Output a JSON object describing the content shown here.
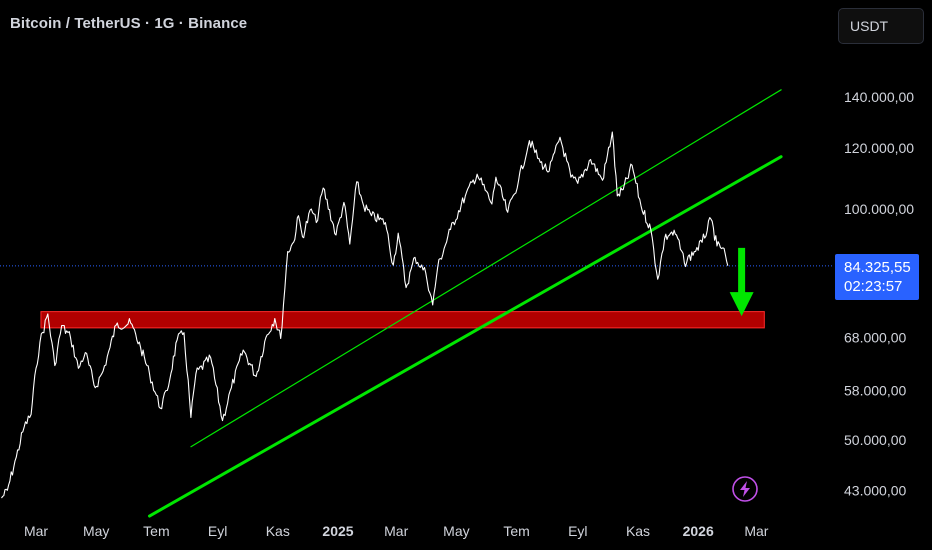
{
  "header": {
    "title": "Bitcoin / TetherUS · 1G · Binance",
    "currency_label": "USDT"
  },
  "price_badge": {
    "price": "84.325,55",
    "countdown": "02:23:57"
  },
  "colors": {
    "background": "#000000",
    "price_line": "#ffffff",
    "channel": "#00e600",
    "support_zone": "#c40000",
    "arrow": "#00e600",
    "badge": "#2962ff",
    "current_price_line": "#2962ff",
    "lightning_icon": "#c050e8"
  },
  "chart_data": {
    "type": "line",
    "scale": "log",
    "grid": false,
    "ylim": [
      40000,
      150000
    ],
    "y_ticks": [
      {
        "value": 140000,
        "label": "140.000,00"
      },
      {
        "value": 120000,
        "label": "120.000,00"
      },
      {
        "value": 100000,
        "label": "100.000,00"
      },
      {
        "value": 68000,
        "label": "68.000,00"
      },
      {
        "value": 58000,
        "label": "58.000,00"
      },
      {
        "value": 50000,
        "label": "50.000,00"
      },
      {
        "value": 43000,
        "label": "43.000,00"
      }
    ],
    "x_ticks": [
      {
        "date": "2024-03-01",
        "label": "Mar",
        "bold": false
      },
      {
        "date": "2024-05-01",
        "label": "May",
        "bold": false
      },
      {
        "date": "2024-07-01",
        "label": "Tem",
        "bold": false
      },
      {
        "date": "2024-09-01",
        "label": "Eyl",
        "bold": false
      },
      {
        "date": "2024-11-01",
        "label": "Kas",
        "bold": false
      },
      {
        "date": "2025-01-01",
        "label": "2025",
        "bold": true
      },
      {
        "date": "2025-03-01",
        "label": "Mar",
        "bold": false
      },
      {
        "date": "2025-05-01",
        "label": "May",
        "bold": false
      },
      {
        "date": "2025-07-01",
        "label": "Tem",
        "bold": false
      },
      {
        "date": "2025-09-01",
        "label": "Eyl",
        "bold": false
      },
      {
        "date": "2025-11-01",
        "label": "Kas",
        "bold": false
      },
      {
        "date": "2026-01-01",
        "label": "2026",
        "bold": true
      },
      {
        "date": "2026-03-01",
        "label": "Mar",
        "bold": false
      }
    ],
    "current_price": 84325.55,
    "series": [
      {
        "points": [
          [
            "2024-01-26",
            42000
          ],
          [
            "2024-02-01",
            43000
          ],
          [
            "2024-02-10",
            47500
          ],
          [
            "2024-02-18",
            52000
          ],
          [
            "2024-02-25",
            54000
          ],
          [
            "2024-03-01",
            62000
          ],
          [
            "2024-03-05",
            67000
          ],
          [
            "2024-03-13",
            73000
          ],
          [
            "2024-03-20",
            62500
          ],
          [
            "2024-03-27",
            70500
          ],
          [
            "2024-04-05",
            68000
          ],
          [
            "2024-04-13",
            62000
          ],
          [
            "2024-04-20",
            65000
          ],
          [
            "2024-04-30",
            58500
          ],
          [
            "2024-05-08",
            61500
          ],
          [
            "2024-05-15",
            66000
          ],
          [
            "2024-05-21",
            70500
          ],
          [
            "2024-06-05",
            71000
          ],
          [
            "2024-06-15",
            66000
          ],
          [
            "2024-06-24",
            61000
          ],
          [
            "2024-07-05",
            55000
          ],
          [
            "2024-07-12",
            58000
          ],
          [
            "2024-07-22",
            67500
          ],
          [
            "2024-07-29",
            69000
          ],
          [
            "2024-08-05",
            53500
          ],
          [
            "2024-08-10",
            61000
          ],
          [
            "2024-08-25",
            64000
          ],
          [
            "2024-09-06",
            53000
          ],
          [
            "2024-09-15",
            58500
          ],
          [
            "2024-09-27",
            65500
          ],
          [
            "2024-10-10",
            60500
          ],
          [
            "2024-10-20",
            68000
          ],
          [
            "2024-10-29",
            72000
          ],
          [
            "2024-11-04",
            67800
          ],
          [
            "2024-11-11",
            88000
          ],
          [
            "2024-11-17",
            90500
          ],
          [
            "2024-11-22",
            98000
          ],
          [
            "2024-11-26",
            92000
          ],
          [
            "2024-12-05",
            100000
          ],
          [
            "2024-12-10",
            96000
          ],
          [
            "2024-12-17",
            106500
          ],
          [
            "2024-12-30",
            92500
          ],
          [
            "2025-01-07",
            102000
          ],
          [
            "2025-01-13",
            90000
          ],
          [
            "2025-01-20",
            108500
          ],
          [
            "2025-01-27",
            101000
          ],
          [
            "2025-02-04",
            98000
          ],
          [
            "2025-02-18",
            96000
          ],
          [
            "2025-02-26",
            84500
          ],
          [
            "2025-03-03",
            93000
          ],
          [
            "2025-03-11",
            79000
          ],
          [
            "2025-03-20",
            86500
          ],
          [
            "2025-03-31",
            82500
          ],
          [
            "2025-04-07",
            75000
          ],
          [
            "2025-04-12",
            84000
          ],
          [
            "2025-04-25",
            94000
          ],
          [
            "2025-05-10",
            104000
          ],
          [
            "2025-05-22",
            111000
          ],
          [
            "2025-06-06",
            101500
          ],
          [
            "2025-06-10",
            110000
          ],
          [
            "2025-06-22",
            99000
          ],
          [
            "2025-07-03",
            109000
          ],
          [
            "2025-07-14",
            122800
          ],
          [
            "2025-07-25",
            115000
          ],
          [
            "2025-08-03",
            112000
          ],
          [
            "2025-08-14",
            124000
          ],
          [
            "2025-08-25",
            110000
          ],
          [
            "2025-09-01",
            108000
          ],
          [
            "2025-09-14",
            116000
          ],
          [
            "2025-09-26",
            109000
          ],
          [
            "2025-10-06",
            126000
          ],
          [
            "2025-10-11",
            104000
          ],
          [
            "2025-10-17",
            106000
          ],
          [
            "2025-10-26",
            114000
          ],
          [
            "2025-11-04",
            101000
          ],
          [
            "2025-11-14",
            94000
          ],
          [
            "2025-11-21",
            81000
          ],
          [
            "2025-11-28",
            91500
          ],
          [
            "2025-12-04",
            93000
          ],
          [
            "2025-12-10",
            92500
          ],
          [
            "2025-12-18",
            85000
          ],
          [
            "2025-12-28",
            88000
          ],
          [
            "2026-01-05",
            90500
          ],
          [
            "2026-01-14",
            97000
          ],
          [
            "2026-01-20",
            89500
          ],
          [
            "2026-01-26",
            89000
          ],
          [
            "2026-01-31",
            84325.55
          ]
        ]
      }
    ],
    "annotations": [
      {
        "type": "trendline",
        "from": [
          "2024-08-05",
          49000
        ],
        "to": [
          "2026-03-26",
          143000
        ],
        "width": 1.2
      },
      {
        "type": "trendline",
        "from": [
          "2024-06-24",
          39800
        ],
        "to": [
          "2026-03-26",
          117000
        ],
        "width": 3
      },
      {
        "type": "zone",
        "from_date": "2024-03-06",
        "to_date": "2026-03-09",
        "low": 70000,
        "high": 73500
      },
      {
        "type": "arrow",
        "date": "2026-02-14",
        "from": 89000,
        "to": 72500,
        "direction": "down"
      }
    ]
  }
}
